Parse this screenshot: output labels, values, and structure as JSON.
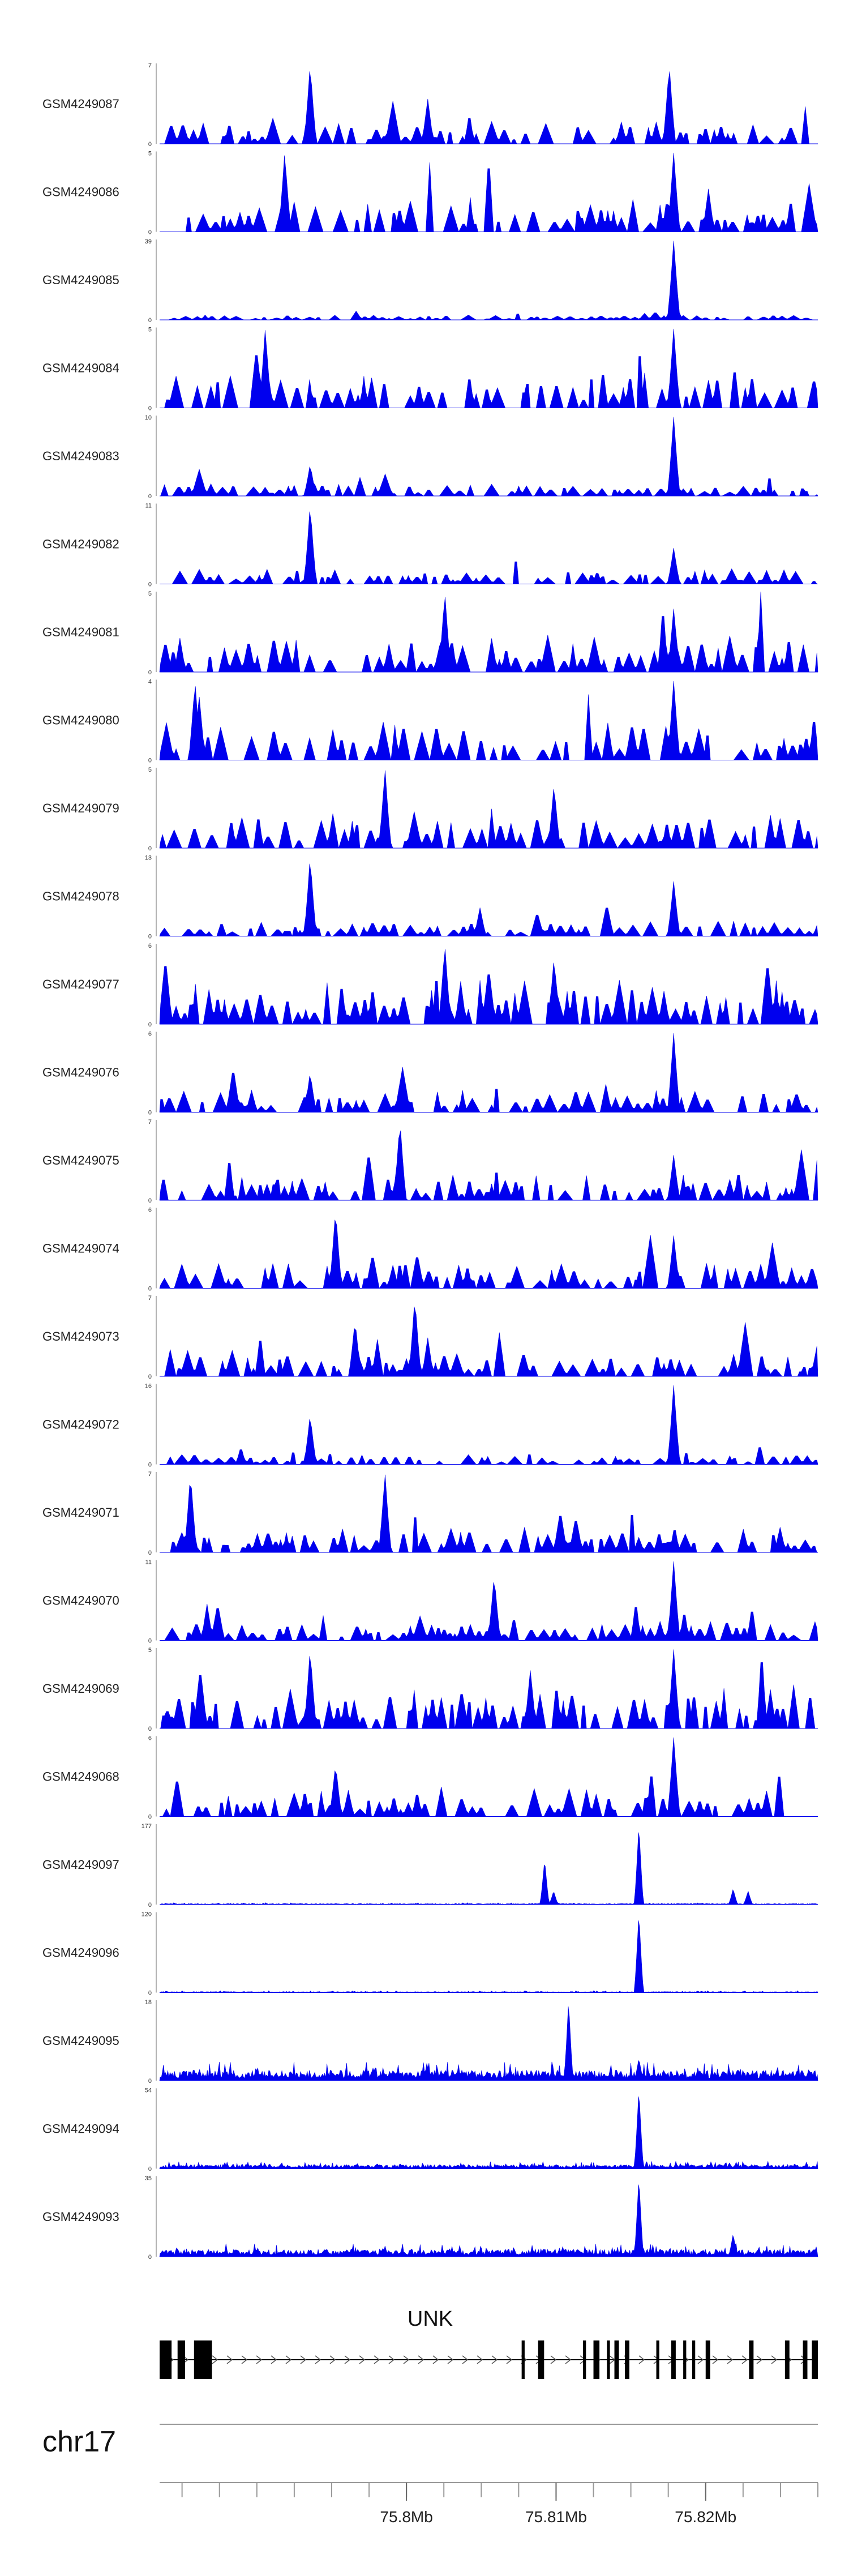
{
  "chart_data": {
    "type": "area",
    "genome_region": {
      "chromosome": "chr17",
      "start_mb": 75.7835,
      "end_mb": 75.8275
    },
    "x_axis": {
      "ticks": [
        {
          "value": 75.8,
          "label": "75.8Mb"
        },
        {
          "value": 75.81,
          "label": "75.81Mb"
        },
        {
          "value": 75.82,
          "label": "75.82Mb"
        }
      ],
      "minor_step_mb": 0.0025
    },
    "tracks": [
      {
        "name": "GSM4249087",
        "ymax": 7,
        "ymax_label": "7",
        "ymin_label": "0",
        "kind": "sparse",
        "baseline_fraction": 0.18,
        "peaks": [
          {
            "mb": 75.7935,
            "height": 7
          },
          {
            "mb": 75.8175,
            "height": 7
          }
        ]
      },
      {
        "name": "GSM4249086",
        "ymax": 5,
        "ymax_label": "5",
        "ymin_label": "0",
        "kind": "sparse",
        "baseline_fraction": 0.28,
        "peaks": [
          {
            "mb": 75.7918,
            "height": 5
          },
          {
            "mb": 75.8178,
            "height": 5
          }
        ]
      },
      {
        "name": "GSM4249085",
        "ymax": 39,
        "ymax_label": "39",
        "ymin_label": "0",
        "kind": "sparse",
        "baseline_fraction": 0.04,
        "peaks": [
          {
            "mb": 75.8178,
            "height": 39
          }
        ]
      },
      {
        "name": "GSM4249084",
        "ymax": 5,
        "ymax_label": "5",
        "ymin_label": "0",
        "kind": "sparse",
        "baseline_fraction": 0.3,
        "peaks": [
          {
            "mb": 75.7905,
            "height": 5
          },
          {
            "mb": 75.8178,
            "height": 5
          }
        ]
      },
      {
        "name": "GSM4249083",
        "ymax": 10,
        "ymax_label": "10",
        "ymin_label": "0",
        "kind": "sparse",
        "baseline_fraction": 0.1,
        "peaks": [
          {
            "mb": 75.7935,
            "height": 4
          },
          {
            "mb": 75.8178,
            "height": 10
          }
        ]
      },
      {
        "name": "GSM4249082",
        "ymax": 11,
        "ymax_label": "11",
        "ymin_label": "0",
        "kind": "sparse",
        "baseline_fraction": 0.12,
        "peaks": [
          {
            "mb": 75.7935,
            "height": 11
          },
          {
            "mb": 75.8178,
            "height": 5
          }
        ]
      },
      {
        "name": "GSM4249081",
        "ymax": 5,
        "ymax_label": "5",
        "ymin_label": "0",
        "kind": "sparse",
        "baseline_fraction": 0.3,
        "peaks": [
          {
            "mb": 75.8025,
            "height": 5
          },
          {
            "mb": 75.8178,
            "height": 4
          }
        ]
      },
      {
        "name": "GSM4249080",
        "ymax": 4,
        "ymax_label": "4",
        "ymin_label": "0",
        "kind": "sparse",
        "baseline_fraction": 0.3,
        "peaks": [
          {
            "mb": 75.7858,
            "height": 4
          },
          {
            "mb": 75.8178,
            "height": 4
          }
        ]
      },
      {
        "name": "GSM4249079",
        "ymax": 5,
        "ymax_label": "5",
        "ymin_label": "0",
        "kind": "sparse",
        "baseline_fraction": 0.28,
        "peaks": [
          {
            "mb": 75.7985,
            "height": 5
          },
          {
            "mb": 75.8098,
            "height": 4
          }
        ]
      },
      {
        "name": "GSM4249078",
        "ymax": 13,
        "ymax_label": "13",
        "ymin_label": "0",
        "kind": "sparse",
        "baseline_fraction": 0.12,
        "peaks": [
          {
            "mb": 75.7935,
            "height": 13
          },
          {
            "mb": 75.8178,
            "height": 9
          }
        ]
      },
      {
        "name": "GSM4249077",
        "ymax": 6,
        "ymax_label": "6",
        "ymin_label": "0",
        "kind": "sparse",
        "baseline_fraction": 0.35,
        "peaks": [
          {
            "mb": 75.8025,
            "height": 6
          },
          {
            "mb": 75.8098,
            "height": 5
          }
        ]
      },
      {
        "name": "GSM4249076",
        "ymax": 6,
        "ymax_label": "6",
        "ymin_label": "0",
        "kind": "sparse",
        "baseline_fraction": 0.18,
        "peaks": [
          {
            "mb": 75.7935,
            "height": 3
          },
          {
            "mb": 75.8178,
            "height": 6
          }
        ]
      },
      {
        "name": "GSM4249075",
        "ymax": 7,
        "ymax_label": "7",
        "ymin_label": "0",
        "kind": "sparse",
        "baseline_fraction": 0.2,
        "peaks": [
          {
            "mb": 75.7995,
            "height": 7
          },
          {
            "mb": 75.8178,
            "height": 4
          }
        ]
      },
      {
        "name": "GSM4249074",
        "ymax": 6,
        "ymax_label": "6",
        "ymin_label": "0",
        "kind": "sparse",
        "baseline_fraction": 0.2,
        "peaks": [
          {
            "mb": 75.7952,
            "height": 6
          },
          {
            "mb": 75.8178,
            "height": 4
          }
        ]
      },
      {
        "name": "GSM4249073",
        "ymax": 7,
        "ymax_label": "7",
        "ymin_label": "0",
        "kind": "sparse",
        "baseline_fraction": 0.2,
        "peaks": [
          {
            "mb": 75.8005,
            "height": 7
          },
          {
            "mb": 75.7965,
            "height": 5
          }
        ]
      },
      {
        "name": "GSM4249072",
        "ymax": 16,
        "ymax_label": "16",
        "ymin_label": "0",
        "kind": "sparse",
        "baseline_fraction": 0.08,
        "peaks": [
          {
            "mb": 75.7935,
            "height": 10
          },
          {
            "mb": 75.8178,
            "height": 16
          }
        ]
      },
      {
        "name": "GSM4249071",
        "ymax": 7,
        "ymax_label": "7",
        "ymin_label": "0",
        "kind": "sparse",
        "baseline_fraction": 0.2,
        "peaks": [
          {
            "mb": 75.7855,
            "height": 7
          },
          {
            "mb": 75.7985,
            "height": 7
          }
        ]
      },
      {
        "name": "GSM4249070",
        "ymax": 11,
        "ymax_label": "11",
        "ymin_label": "0",
        "kind": "sparse",
        "baseline_fraction": 0.15,
        "peaks": [
          {
            "mb": 75.8058,
            "height": 9
          },
          {
            "mb": 75.8178,
            "height": 11
          }
        ]
      },
      {
        "name": "GSM4249069",
        "ymax": 5,
        "ymax_label": "5",
        "ymin_label": "0",
        "kind": "sparse",
        "baseline_fraction": 0.32,
        "peaks": [
          {
            "mb": 75.7935,
            "height": 5
          },
          {
            "mb": 75.8178,
            "height": 5
          }
        ]
      },
      {
        "name": "GSM4249068",
        "ymax": 6,
        "ymax_label": "6",
        "ymin_label": "0",
        "kind": "sparse",
        "baseline_fraction": 0.22,
        "peaks": [
          {
            "mb": 75.8178,
            "height": 6
          },
          {
            "mb": 75.7952,
            "height": 4
          }
        ]
      },
      {
        "name": "GSM4249097",
        "ymax": 177,
        "ymax_label": "177",
        "ymin_label": "0",
        "kind": "dense",
        "baseline_fraction": 0.01,
        "peaks": [
          {
            "mb": 75.8092,
            "height": 100
          },
          {
            "mb": 75.8155,
            "height": 177
          },
          {
            "mb": 75.8098,
            "height": 30
          },
          {
            "mb": 75.8218,
            "height": 35
          },
          {
            "mb": 75.8228,
            "height": 30
          }
        ]
      },
      {
        "name": "GSM4249096",
        "ymax": 120,
        "ymax_label": "120",
        "ymin_label": "0",
        "kind": "dense",
        "baseline_fraction": 0.01,
        "peaks": [
          {
            "mb": 75.8155,
            "height": 120
          }
        ]
      },
      {
        "name": "GSM4249095",
        "ymax": 18,
        "ymax_label": "18",
        "ymin_label": "0",
        "kind": "dense",
        "baseline_fraction": 0.1,
        "peaks": [
          {
            "mb": 75.8108,
            "height": 18
          },
          {
            "mb": 75.8155,
            "height": 5
          }
        ]
      },
      {
        "name": "GSM4249094",
        "ymax": 54,
        "ymax_label": "54",
        "ymin_label": "0",
        "kind": "dense",
        "baseline_fraction": 0.04,
        "peaks": [
          {
            "mb": 75.8155,
            "height": 54
          }
        ]
      },
      {
        "name": "GSM4249093",
        "ymax": 35,
        "ymax_label": "35",
        "ymin_label": "0",
        "kind": "dense",
        "baseline_fraction": 0.07,
        "peaks": [
          {
            "mb": 75.8155,
            "height": 35
          },
          {
            "mb": 75.8218,
            "height": 10
          }
        ]
      }
    ],
    "gene": {
      "name": "UNK",
      "strand": "+",
      "span_mb": [
        75.7835,
        75.8275
      ],
      "exons_mb": [
        [
          75.7835,
          75.7843
        ],
        [
          75.7847,
          75.7852
        ],
        [
          75.7858,
          75.787
        ],
        [
          75.8077,
          75.8079
        ],
        [
          75.8088,
          75.8092
        ],
        [
          75.8118,
          75.812
        ],
        [
          75.8125,
          75.8129
        ],
        [
          75.8134,
          75.8136
        ],
        [
          75.8139,
          75.8142
        ],
        [
          75.8146,
          75.8149
        ],
        [
          75.8167,
          75.8169
        ],
        [
          75.8177,
          75.818
        ],
        [
          75.8185,
          75.8187
        ],
        [
          75.8191,
          75.8193
        ],
        [
          75.82,
          75.8203
        ],
        [
          75.8229,
          75.8232
        ],
        [
          75.8253,
          75.8256
        ],
        [
          75.8265,
          75.8268
        ],
        [
          75.8271,
          75.8275
        ]
      ]
    }
  }
}
